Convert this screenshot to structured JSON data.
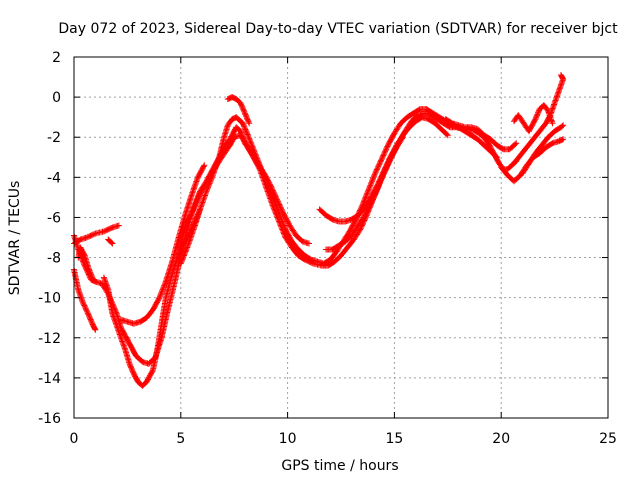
{
  "chart_data": {
    "type": "scatter",
    "title": "Day 072 of 2023, Sidereal Day-to-day VTEC variation (SDTVAR) for receiver bjct",
    "xlabel": "GPS time / hours",
    "ylabel": "SDTVAR / TECUs",
    "xlim": [
      0,
      25
    ],
    "ylim": [
      -16,
      2
    ],
    "xticks": [
      0,
      5,
      10,
      15,
      20,
      25
    ],
    "yticks": [
      -16,
      -14,
      -12,
      -10,
      -8,
      -6,
      -4,
      -2,
      0,
      2
    ],
    "grid": true,
    "marker": "plus",
    "color": "#ff0000",
    "series": [
      {
        "values": [
          [
            0.0,
            -6.9
          ],
          [
            0.2,
            -7.6
          ],
          [
            0.5,
            -8.4
          ],
          [
            0.8,
            -9.1
          ],
          [
            1.0,
            -9.2
          ],
          [
            1.3,
            -9.3
          ],
          [
            1.6,
            -9.8
          ],
          [
            2.0,
            -10.8
          ],
          [
            2.2,
            -11.5
          ],
          [
            2.5,
            -12.1
          ],
          [
            2.7,
            -12.5
          ],
          [
            2.9,
            -12.9
          ],
          [
            3.2,
            -13.2
          ],
          [
            3.5,
            -13.3
          ],
          [
            3.8,
            -13.0
          ],
          [
            4.1,
            -12.0
          ],
          [
            4.4,
            -10.6
          ],
          [
            4.7,
            -9.3
          ],
          [
            5.0,
            -7.9
          ],
          [
            5.3,
            -6.6
          ],
          [
            5.6,
            -5.5
          ],
          [
            5.9,
            -4.7
          ],
          [
            6.2,
            -4.2
          ],
          [
            6.5,
            -3.6
          ],
          [
            6.8,
            -3.0
          ],
          [
            7.1,
            -2.4
          ],
          [
            7.4,
            -1.9
          ],
          [
            7.6,
            -1.5
          ],
          [
            7.8,
            -1.7
          ],
          [
            8.0,
            -2.3
          ],
          [
            8.3,
            -2.8
          ],
          [
            8.6,
            -3.3
          ],
          [
            8.9,
            -3.8
          ],
          [
            9.2,
            -4.4
          ],
          [
            9.5,
            -5.1
          ],
          [
            9.8,
            -5.8
          ],
          [
            10.1,
            -6.4
          ],
          [
            10.4,
            -6.9
          ],
          [
            10.7,
            -7.2
          ],
          [
            11.0,
            -7.3
          ]
        ]
      },
      {
        "values": [
          [
            0.0,
            -8.6
          ],
          [
            0.2,
            -9.6
          ],
          [
            0.4,
            -10.2
          ],
          [
            0.7,
            -10.9
          ],
          [
            0.9,
            -11.4
          ],
          [
            1.0,
            -11.6
          ]
        ]
      },
      {
        "values": [
          [
            0.0,
            -7.3
          ],
          [
            0.3,
            -7.1
          ],
          [
            0.6,
            -7.0
          ],
          [
            1.0,
            -6.8
          ],
          [
            1.4,
            -6.7
          ],
          [
            1.8,
            -6.5
          ],
          [
            2.1,
            -6.4
          ]
        ]
      },
      {
        "values": [
          [
            1.6,
            -7.1
          ],
          [
            1.7,
            -7.2
          ],
          [
            1.8,
            -7.3
          ]
        ]
      },
      {
        "values": [
          [
            1.4,
            -9.0
          ],
          [
            1.6,
            -9.6
          ],
          [
            1.8,
            -10.8
          ],
          [
            2.1,
            -11.7
          ],
          [
            2.4,
            -12.6
          ],
          [
            2.6,
            -13.3
          ],
          [
            2.8,
            -13.8
          ],
          [
            3.0,
            -14.2
          ],
          [
            3.2,
            -14.4
          ],
          [
            3.4,
            -14.2
          ],
          [
            3.7,
            -13.6
          ],
          [
            3.9,
            -12.6
          ],
          [
            4.1,
            -11.3
          ],
          [
            4.3,
            -10.0
          ],
          [
            4.6,
            -8.8
          ],
          [
            4.9,
            -7.8
          ],
          [
            5.1,
            -6.9
          ],
          [
            5.3,
            -6.2
          ],
          [
            5.6,
            -5.6
          ],
          [
            5.9,
            -4.8
          ],
          [
            6.2,
            -4.3
          ],
          [
            6.5,
            -3.7
          ],
          [
            6.8,
            -3.2
          ],
          [
            7.1,
            -2.7
          ],
          [
            7.3,
            -2.4
          ],
          [
            7.5,
            -2.0
          ],
          [
            7.8,
            -1.9
          ],
          [
            8.1,
            -2.4
          ],
          [
            8.4,
            -3.0
          ],
          [
            8.7,
            -3.6
          ],
          [
            9.0,
            -4.5
          ],
          [
            9.3,
            -5.4
          ],
          [
            9.6,
            -6.2
          ],
          [
            9.9,
            -7.0
          ],
          [
            10.2,
            -7.5
          ],
          [
            10.5,
            -7.9
          ],
          [
            10.8,
            -8.1
          ],
          [
            11.2,
            -8.3
          ],
          [
            11.6,
            -8.4
          ],
          [
            11.9,
            -8.4
          ],
          [
            12.2,
            -8.2
          ],
          [
            12.5,
            -7.9
          ],
          [
            12.8,
            -7.5
          ],
          [
            13.1,
            -7.1
          ],
          [
            13.4,
            -6.6
          ],
          [
            13.7,
            -5.9
          ],
          [
            14.0,
            -5.1
          ],
          [
            14.3,
            -4.3
          ],
          [
            14.6,
            -3.6
          ],
          [
            14.9,
            -2.9
          ],
          [
            15.2,
            -2.3
          ],
          [
            15.5,
            -1.7
          ],
          [
            15.8,
            -1.2
          ],
          [
            16.1,
            -0.9
          ],
          [
            16.4,
            -0.8
          ],
          [
            16.7,
            -0.9
          ],
          [
            17.0,
            -1.1
          ],
          [
            17.3,
            -1.3
          ],
          [
            17.6,
            -1.5
          ],
          [
            17.9,
            -1.5
          ],
          [
            18.2,
            -1.6
          ],
          [
            18.5,
            -1.6
          ],
          [
            18.8,
            -1.7
          ],
          [
            19.1,
            -1.9
          ],
          [
            19.4,
            -2.3
          ],
          [
            19.7,
            -2.9
          ],
          [
            19.9,
            -3.3
          ],
          [
            20.1,
            -3.6
          ],
          [
            20.3,
            -3.6
          ],
          [
            20.5,
            -3.4
          ],
          [
            20.7,
            -3.2
          ]
        ]
      },
      {
        "values": [
          [
            2.2,
            -11.1
          ],
          [
            2.5,
            -11.2
          ],
          [
            2.8,
            -11.3
          ],
          [
            3.1,
            -11.2
          ],
          [
            3.4,
            -11.0
          ],
          [
            3.7,
            -10.6
          ],
          [
            4.0,
            -10.0
          ],
          [
            4.3,
            -9.2
          ],
          [
            4.6,
            -8.2
          ],
          [
            4.9,
            -7.0
          ],
          [
            5.2,
            -5.9
          ],
          [
            5.5,
            -4.9
          ],
          [
            5.8,
            -4.0
          ],
          [
            6.1,
            -3.4
          ]
        ]
      },
      {
        "values": [
          [
            5.0,
            -8.3
          ],
          [
            5.3,
            -7.5
          ],
          [
            5.6,
            -6.6
          ],
          [
            5.9,
            -5.6
          ],
          [
            6.2,
            -4.7
          ],
          [
            6.5,
            -3.9
          ],
          [
            6.8,
            -3.0
          ],
          [
            7.0,
            -2.1
          ],
          [
            7.2,
            -1.4
          ],
          [
            7.4,
            -1.1
          ],
          [
            7.6,
            -1.0
          ],
          [
            7.9,
            -1.3
          ],
          [
            8.1,
            -1.8
          ],
          [
            8.4,
            -2.6
          ],
          [
            8.7,
            -3.4
          ],
          [
            9.0,
            -4.2
          ],
          [
            9.3,
            -5.0
          ],
          [
            9.6,
            -5.8
          ],
          [
            9.9,
            -6.6
          ],
          [
            10.2,
            -7.2
          ],
          [
            10.5,
            -7.6
          ],
          [
            10.8,
            -7.9
          ],
          [
            11.1,
            -8.1
          ],
          [
            11.4,
            -8.2
          ],
          [
            11.7,
            -8.3
          ],
          [
            12.0,
            -8.1
          ],
          [
            12.3,
            -7.7
          ],
          [
            12.6,
            -7.2
          ],
          [
            12.9,
            -6.7
          ],
          [
            13.2,
            -6.1
          ],
          [
            13.5,
            -5.4
          ],
          [
            13.8,
            -4.6
          ],
          [
            14.1,
            -3.8
          ],
          [
            14.4,
            -3.1
          ],
          [
            14.7,
            -2.4
          ],
          [
            15.0,
            -1.8
          ],
          [
            15.3,
            -1.3
          ],
          [
            15.6,
            -1.0
          ],
          [
            15.9,
            -0.8
          ],
          [
            16.2,
            -0.6
          ],
          [
            16.5,
            -0.6
          ],
          [
            16.8,
            -0.8
          ],
          [
            17.1,
            -1.0
          ],
          [
            17.4,
            -1.2
          ],
          [
            17.7,
            -1.4
          ],
          [
            18.0,
            -1.5
          ],
          [
            18.3,
            -1.7
          ],
          [
            18.6,
            -1.9
          ],
          [
            18.9,
            -2.1
          ],
          [
            19.2,
            -2.4
          ],
          [
            19.5,
            -2.7
          ],
          [
            19.8,
            -3.0
          ]
        ]
      },
      {
        "values": [
          [
            7.2,
            -0.1
          ],
          [
            7.4,
            0.0
          ],
          [
            7.6,
            -0.1
          ],
          [
            7.8,
            -0.3
          ],
          [
            8.0,
            -0.8
          ],
          [
            8.2,
            -1.3
          ]
        ]
      },
      {
        "values": [
          [
            11.5,
            -5.6
          ],
          [
            11.8,
            -5.9
          ],
          [
            12.1,
            -6.1
          ],
          [
            12.4,
            -6.2
          ],
          [
            12.7,
            -6.2
          ],
          [
            13.0,
            -6.1
          ],
          [
            13.3,
            -5.9
          ],
          [
            13.6,
            -5.5
          ],
          [
            13.9,
            -5.0
          ],
          [
            14.2,
            -4.4
          ],
          [
            14.5,
            -3.7
          ],
          [
            14.8,
            -3.0
          ],
          [
            15.1,
            -2.4
          ],
          [
            15.4,
            -1.9
          ],
          [
            15.7,
            -1.5
          ],
          [
            16.0,
            -1.2
          ],
          [
            16.3,
            -1.0
          ],
          [
            16.6,
            -1.1
          ],
          [
            16.9,
            -1.3
          ],
          [
            17.2,
            -1.6
          ],
          [
            17.5,
            -1.9
          ]
        ]
      },
      {
        "values": [
          [
            11.8,
            -7.6
          ],
          [
            12.1,
            -7.6
          ],
          [
            12.4,
            -7.4
          ],
          [
            12.7,
            -7.2
          ],
          [
            13.0,
            -6.9
          ],
          [
            13.3,
            -6.4
          ],
          [
            13.6,
            -5.9
          ],
          [
            13.9,
            -5.3
          ],
          [
            14.2,
            -4.6
          ],
          [
            14.5,
            -3.8
          ],
          [
            14.8,
            -3.1
          ],
          [
            15.1,
            -2.5
          ],
          [
            15.4,
            -2.0
          ]
        ]
      },
      {
        "values": [
          [
            17.4,
            -1.1
          ],
          [
            17.7,
            -1.3
          ],
          [
            18.0,
            -1.4
          ],
          [
            18.3,
            -1.5
          ],
          [
            18.6,
            -1.5
          ],
          [
            18.9,
            -1.6
          ],
          [
            19.2,
            -1.9
          ],
          [
            19.5,
            -2.1
          ],
          [
            19.8,
            -2.4
          ],
          [
            20.1,
            -2.6
          ],
          [
            20.4,
            -2.6
          ],
          [
            20.7,
            -2.3
          ]
        ]
      },
      {
        "values": [
          [
            20.0,
            -3.5
          ],
          [
            20.3,
            -3.9
          ],
          [
            20.6,
            -4.2
          ],
          [
            20.9,
            -3.9
          ],
          [
            21.2,
            -3.4
          ],
          [
            21.5,
            -3.0
          ],
          [
            21.8,
            -2.8
          ],
          [
            22.1,
            -2.5
          ],
          [
            22.4,
            -2.3
          ],
          [
            22.7,
            -2.2
          ],
          [
            22.9,
            -2.1
          ]
        ]
      },
      {
        "values": [
          [
            20.6,
            -3.3
          ],
          [
            20.9,
            -2.9
          ],
          [
            21.2,
            -2.5
          ],
          [
            21.5,
            -2.1
          ],
          [
            21.8,
            -1.7
          ],
          [
            22.1,
            -1.3
          ],
          [
            22.3,
            -0.9
          ],
          [
            22.5,
            -0.3
          ],
          [
            22.7,
            0.3
          ],
          [
            22.9,
            0.9
          ],
          [
            22.8,
            1.1
          ]
        ]
      },
      {
        "values": [
          [
            21.0,
            -3.8
          ],
          [
            21.3,
            -3.3
          ],
          [
            21.6,
            -2.8
          ],
          [
            21.9,
            -2.4
          ],
          [
            22.2,
            -2.0
          ],
          [
            22.5,
            -1.7
          ],
          [
            22.8,
            -1.5
          ],
          [
            22.9,
            -1.4
          ]
        ]
      },
      {
        "values": [
          [
            20.6,
            -1.2
          ],
          [
            20.8,
            -0.9
          ],
          [
            21.3,
            -1.7
          ],
          [
            21.6,
            -1.1
          ],
          [
            21.8,
            -0.6
          ],
          [
            22.0,
            -0.4
          ],
          [
            22.2,
            -0.7
          ],
          [
            22.4,
            -1.3
          ]
        ]
      },
      {
        "values": [
          [
            4.9,
            -8.0
          ],
          [
            5.1,
            -7.4
          ],
          [
            5.4,
            -6.8
          ],
          [
            5.7,
            -6.1
          ],
          [
            5.9,
            -5.6
          ]
        ]
      },
      {
        "values": [
          [
            0.2,
            -8.0
          ],
          [
            0.3,
            -7.5
          ],
          [
            0.5,
            -7.9
          ],
          [
            0.7,
            -8.6
          ],
          [
            0.9,
            -9.1
          ]
        ]
      }
    ]
  }
}
